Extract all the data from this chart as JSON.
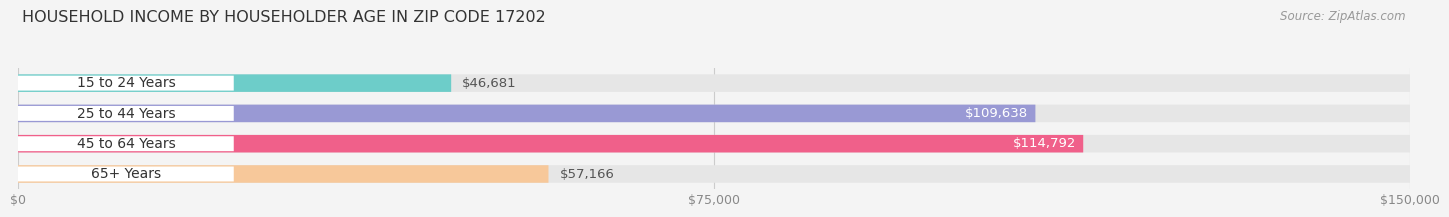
{
  "title": "HOUSEHOLD INCOME BY HOUSEHOLDER AGE IN ZIP CODE 17202",
  "source": "Source: ZipAtlas.com",
  "categories": [
    "15 to 24 Years",
    "25 to 44 Years",
    "45 to 64 Years",
    "65+ Years"
  ],
  "values": [
    46681,
    109638,
    114792,
    57166
  ],
  "bar_colors": [
    "#6dcdc9",
    "#9999d4",
    "#f0608a",
    "#f7c89a"
  ],
  "value_labels": [
    "$46,681",
    "$109,638",
    "$114,792",
    "$57,166"
  ],
  "value_inside": [
    false,
    true,
    true,
    false
  ],
  "xlim": [
    0,
    150000
  ],
  "xticks": [
    0,
    75000,
    150000
  ],
  "xtick_labels": [
    "$0",
    "$75,000",
    "$150,000"
  ],
  "background_color": "#f4f4f4",
  "bar_background_color": "#e6e6e6",
  "title_fontsize": 11.5,
  "source_fontsize": 8.5,
  "label_fontsize": 10,
  "value_fontsize": 9.5,
  "bar_height": 0.58,
  "fig_width": 14.06,
  "fig_height": 2.33
}
